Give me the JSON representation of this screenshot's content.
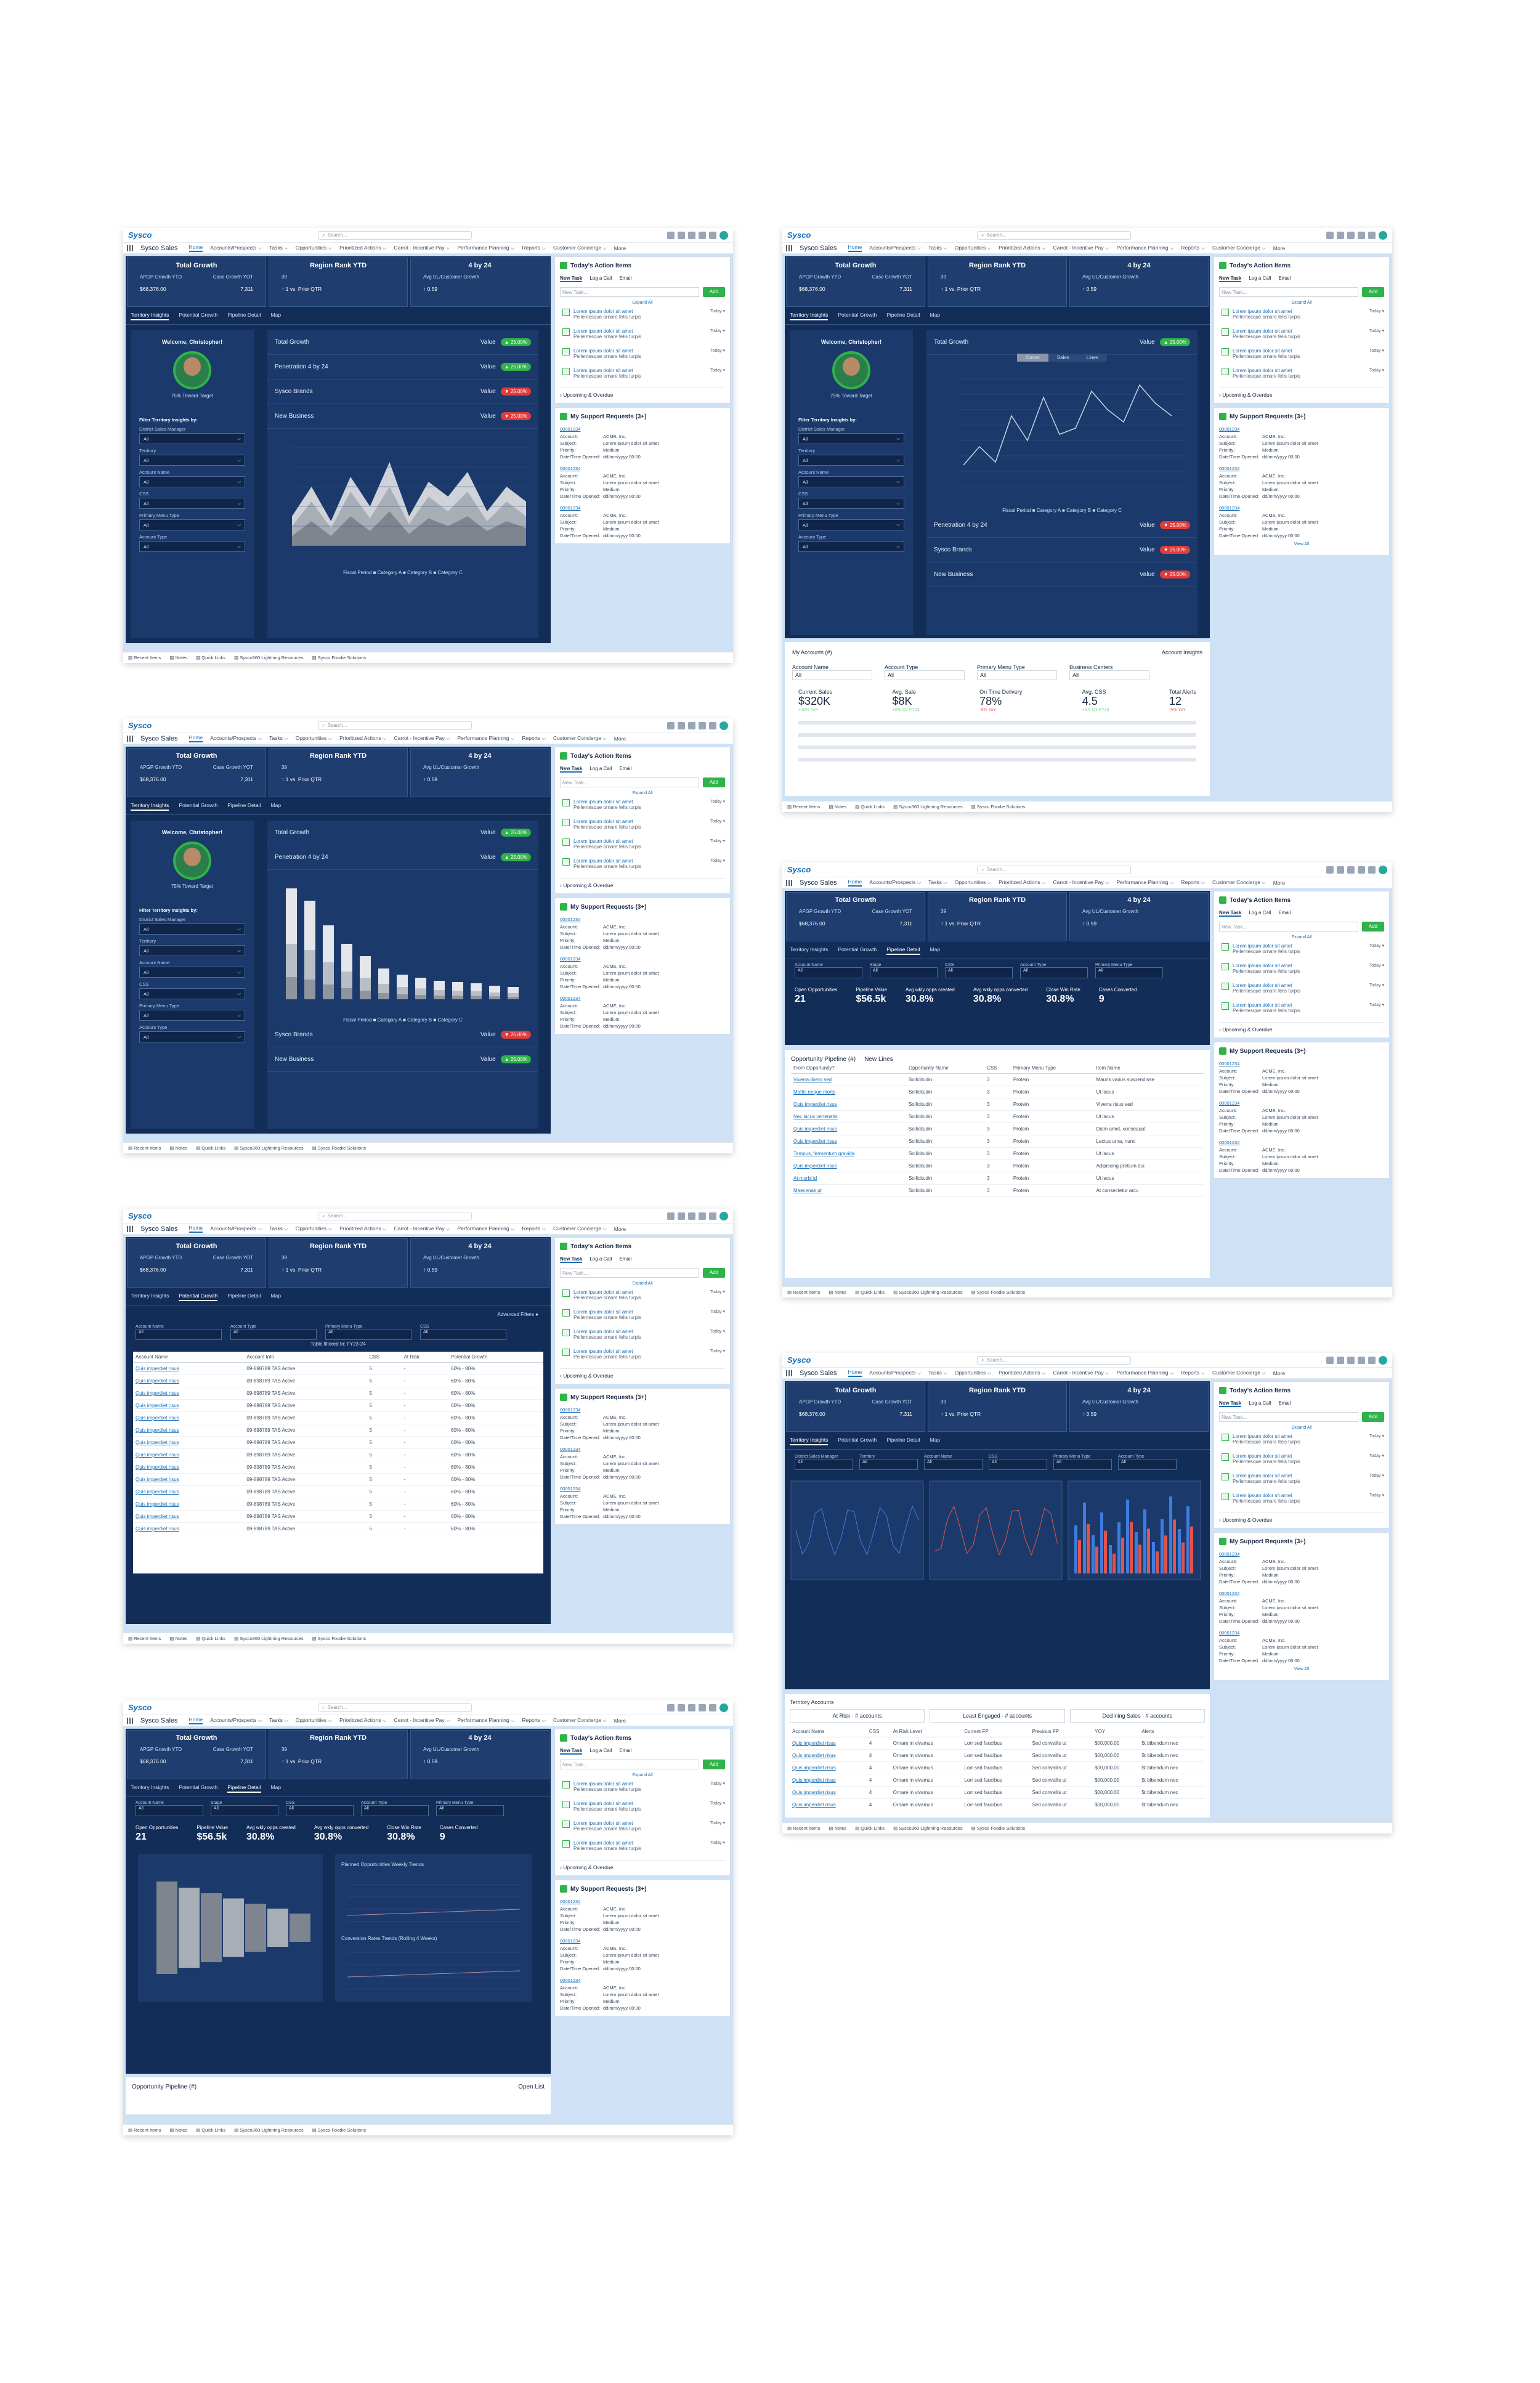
{
  "common": {
    "logo": "Sysco",
    "search_placeholder": "Search...",
    "app_name": "Sysco Sales",
    "nav": [
      "Home",
      "Accounts/Prospects",
      "Tasks",
      "Opportunities",
      "Prioritized Actions",
      "Carrot - Incentive Pay",
      "Performance Planning",
      "Reports",
      "Customer Concierge",
      "More"
    ],
    "kpi": [
      {
        "title": "Total Growth",
        "labels": [
          "APGP Growth YTD",
          "Case Growth YOT"
        ],
        "values": [
          "$68,376.00",
          "7,311"
        ]
      },
      {
        "title": "Region Rank YTD",
        "labels": [
          "39",
          ""
        ],
        "values": [
          "↑ 1 vs. Prior QTR",
          ""
        ]
      },
      {
        "title": "4 by 24",
        "labels": [
          "Avg UL/Customer Growth",
          ""
        ],
        "values": [
          "↑ 0.59",
          ""
        ]
      }
    ],
    "tabs": [
      "Territory Insights",
      "Potential Growth",
      "Pipeline Detail",
      "Map"
    ],
    "welcome": "Welcome, Christopher!",
    "toward_target": "75% Toward Target",
    "filter_title": "Filter Territory Insights by:",
    "filters": [
      {
        "label": "District Sales Manager",
        "value": "All"
      },
      {
        "label": "Territory",
        "value": "All"
      },
      {
        "label": "Account Name",
        "value": "All"
      },
      {
        "label": "CSS",
        "value": "All"
      },
      {
        "label": "Primary Menu Type",
        "value": "All"
      },
      {
        "label": "Account Type",
        "value": "All"
      }
    ],
    "metrics": {
      "total_growth": "Total Growth",
      "penetration": "Penetration 4 by 24",
      "sysco_brands": "Sysco Brands",
      "new_business": "New Business",
      "value": "Value",
      "p_pos": "▲ 25.00%",
      "p_neg": "▼ 25.00%"
    },
    "actions": {
      "title": "Today's Action Items",
      "tabs": [
        "New Task",
        "Log a Call",
        "Email"
      ],
      "input_placeholder": "New Task...",
      "add": "Add",
      "expand": "Expand All",
      "item_link": "Lorem ipsum dolor sit amet",
      "item_desc": "Pellentesque ornare felis turpis",
      "item_date": "Today",
      "upcoming": "Upcoming & Overdue"
    },
    "support": {
      "title": "My Support Requests (3+)",
      "rows": [
        {
          "k": "Account:",
          "v": "ACME, Inc."
        },
        {
          "k": "Subject:",
          "v": "Lorem ipsum dolor sit amet"
        },
        {
          "k": "Priority:",
          "v": "Medium"
        },
        {
          "k": "Date/Time Opened:",
          "v": "dd/mm/yyyy 00:00"
        }
      ],
      "view_all": "View All"
    },
    "footer": [
      "Recent Items",
      "Notes",
      "Quick Links",
      "Sysco360 Lightning Resources",
      "Sysco Foodie Solutions"
    ],
    "legend": [
      "Fiscal Period",
      "Category A",
      "Category B",
      "Category C"
    ]
  },
  "potential": {
    "advanced": "Advanced Filters",
    "table_title": "Table filtered to: FY23-24",
    "cols": [
      "Account Name",
      "Account Info",
      "CSS",
      "At Risk",
      "Potential Growth"
    ],
    "row": [
      "Quis imperdiet risus",
      "09-898789 TAS Active",
      "5",
      "-",
      "60% - 80%"
    ]
  },
  "pipeline": {
    "filters": [
      "Account Name",
      "Stage",
      "CSS",
      "Account Type",
      "Primary Menu Type"
    ],
    "kpis": [
      {
        "label": "Open Opportunities",
        "value": "21"
      },
      {
        "label": "Pipeline Value",
        "value": "$56.5k"
      },
      {
        "label": "Avg wkly opps created",
        "value": "30.8%"
      },
      {
        "label": "Avg wkly opps converted",
        "value": "30.8%"
      },
      {
        "label": "Close Win Rate",
        "value": "30.8%"
      },
      {
        "label": "Cases Converted",
        "value": "9"
      }
    ],
    "opp_title": "Opportunity Pipeline (#)",
    "new_lines": "New Lines",
    "cols": [
      "From Opportunity?",
      "Opportunity Name",
      "CSS",
      "Primary Menu Type",
      "Item Name"
    ],
    "rows": [
      [
        "Viverra libero sed",
        "Sollicitudin",
        "3",
        "Protein",
        "Mauris varius suspendisse"
      ],
      [
        "Mattis neque morbi",
        "Sollicitudin",
        "3",
        "Protein",
        "Ut lacus"
      ],
      [
        "Quis imperdiet risus",
        "Sollicitudin",
        "3",
        "Protein",
        "Viverra risus sed"
      ],
      [
        "Nec lacus venenatis",
        "Sollicitudin",
        "3",
        "Protein",
        "Ut lacus"
      ],
      [
        "Quis imperdiet risus",
        "Sollicitudin",
        "3",
        "Protein",
        "Diam amet, consequat"
      ],
      [
        "Quis imperdiet risus",
        "Sollicitudin",
        "3",
        "Protein",
        "Lectus urna, nunc"
      ],
      [
        "Tempus, fermentum gravida",
        "Sollicitudin",
        "3",
        "Protein",
        "Ut lacus"
      ],
      [
        "Quis imperdiet risus",
        "Sollicitudin",
        "3",
        "Protein",
        "Adipiscing pretium dui"
      ],
      [
        "At morbi id",
        "Sollicitudin",
        "3",
        "Protein",
        "Ut lacus"
      ],
      [
        "Maecenas ut",
        "Sollicitudin",
        "3",
        "Protein",
        "At consectetur arcu"
      ]
    ],
    "funnel_stage": "Stage",
    "weekly": "Planned Opportunities Weekly Trends",
    "conversion": "Conversion Rates Trends (Rolling 4 Weeks)",
    "legend2": [
      "Region",
      "District"
    ],
    "open_list": "Open List"
  },
  "accounts": {
    "title": "My Accounts (#)",
    "insights": "Account Insights",
    "filters": [
      "Account Name",
      "Account Type",
      "Primary Menu Type",
      "Business Centers"
    ],
    "stats": [
      {
        "label": "Current Sales",
        "value": "$320K",
        "sub": "+10% YoY"
      },
      {
        "label": "Avg. Sale",
        "value": "$8K",
        "sub": "+0% Q1 FY23"
      },
      {
        "label": "On Time Delivery",
        "value": "78%",
        "sub": "-5% YoY"
      },
      {
        "label": "Avg. CSS",
        "value": "4.5",
        "sub": "+0.5 Q1 FY23"
      },
      {
        "label": "Total Alerts",
        "value": "12",
        "sub": "-5% YoY"
      }
    ],
    "toggle": [
      "Cases",
      "Sales",
      "Lines"
    ]
  },
  "territory": {
    "title": "Territory Accounts",
    "chips": [
      {
        "label": "At Risk",
        "sub": "# accounts"
      },
      {
        "label": "Least Engaged",
        "sub": "# accounts"
      },
      {
        "label": "Declining Sales",
        "sub": "# accounts"
      }
    ],
    "cols": [
      "Account Name",
      "CSS",
      "At Risk Level",
      "Current FP",
      "Previous FP",
      "YOY",
      "Alerts"
    ],
    "row": [
      "Quis imperdiet risus",
      "4",
      "Ornare in vivamus",
      "Lorr sed faucibus",
      "Sed convallis ut",
      "$00,000.00",
      "$t bibendum nec"
    ]
  }
}
